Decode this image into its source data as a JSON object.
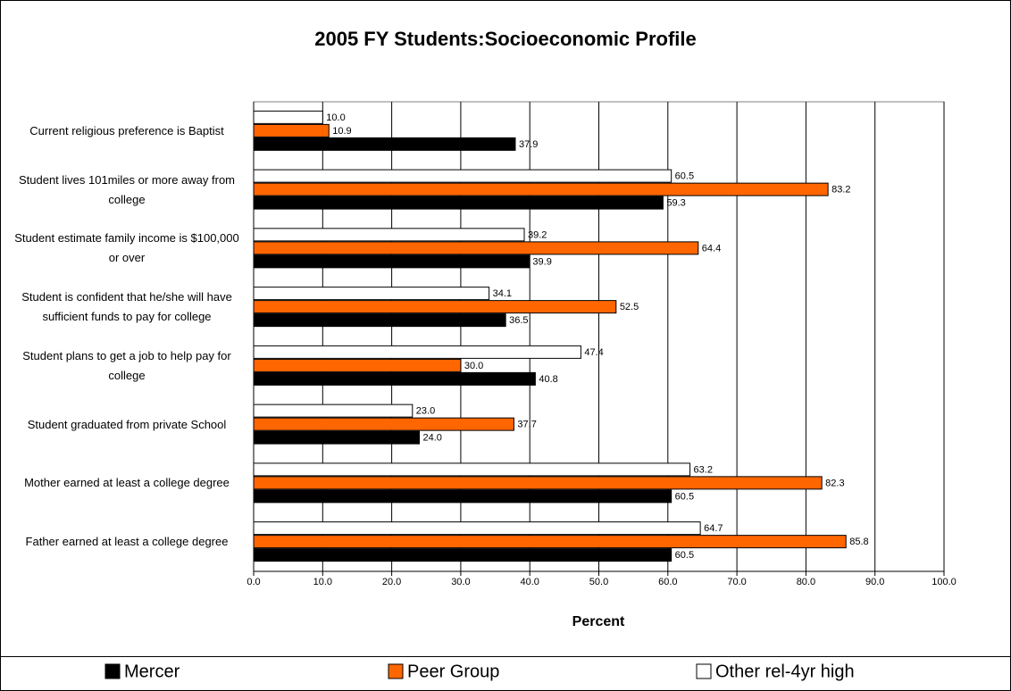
{
  "chart_data": {
    "type": "hbar",
    "title": "2005 FY Students:Socioeconomic Profile",
    "xlabel": "Percent",
    "categories": [
      "Current religious preference is Baptist",
      "Student lives 101miles or more away from college",
      "Student estimate family income is $100,000 or over",
      "Student is confident that he/she will have sufficient funds to pay for college",
      "Student  plans to get a job to help pay for college",
      "Student graduated from private School",
      "Mother earned at least a college degree",
      "Father earned at least a college degree"
    ],
    "series": [
      {
        "name": "Mercer",
        "color": "#000000",
        "values": [
          37.9,
          59.3,
          39.9,
          36.5,
          40.8,
          24,
          60.5,
          60.5
        ],
        "value_labels": [
          "37.9",
          "59.3",
          "39.9",
          "36.5",
          "40.8",
          "24.0",
          "60.5",
          "60.5"
        ]
      },
      {
        "name": "Peer Group",
        "color": "#ff6600",
        "values": [
          10.9,
          83.2,
          64.4,
          52.5,
          30,
          37.7,
          82.3,
          85.8
        ],
        "value_labels": [
          "10.9",
          "83.2",
          "64.4",
          "52.5",
          "30.0",
          "37.7",
          "82.3",
          "85.8"
        ]
      },
      {
        "name": "Other rel-4yr high",
        "color": "#ffffff",
        "values": [
          10,
          60.5,
          39.2,
          34.1,
          47.4,
          23,
          63.2,
          64.7
        ],
        "value_labels": [
          "10.0",
          "60.5",
          "39.2",
          "34.1",
          "47.4",
          "23.0",
          "63.2",
          "64.7"
        ]
      }
    ],
    "xlim": [
      0,
      100
    ],
    "xticks": [
      {
        "value": 0,
        "label": "0.0"
      },
      {
        "value": 10,
        "label": "10.0"
      },
      {
        "value": 20,
        "label": "20.0"
      },
      {
        "value": 30,
        "label": "30.0"
      },
      {
        "value": 40,
        "label": "40.0"
      },
      {
        "value": 50,
        "label": "50.0"
      },
      {
        "value": 60,
        "label": "60.0"
      },
      {
        "value": 70,
        "label": "70.0"
      },
      {
        "value": 80,
        "label": "80.0"
      },
      {
        "value": 90,
        "label": "90.0"
      },
      {
        "value": 100,
        "label": "100.0"
      }
    ],
    "grid": true,
    "legend": "bottom"
  }
}
